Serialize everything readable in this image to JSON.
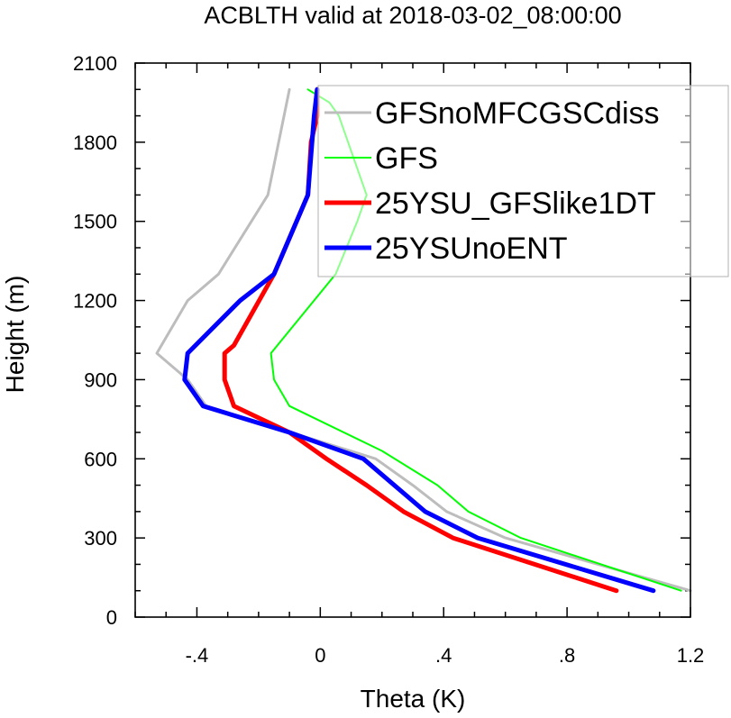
{
  "chart_data": {
    "type": "line",
    "title": "ACBLTH valid at 2018-03-02_08:00:00",
    "xlabel": "Theta (K)",
    "ylabel": "Height (m)",
    "xlim": [
      -0.6,
      1.2
    ],
    "ylim": [
      0,
      2100
    ],
    "xticks": [
      -0.4,
      0,
      0.4,
      0.8,
      1.2
    ],
    "xtick_labels": [
      "-.4",
      "0",
      ".4",
      ".8",
      "1.2"
    ],
    "yticks": [
      0,
      300,
      600,
      900,
      1200,
      1500,
      1800,
      2100
    ],
    "ytick_labels": [
      "0",
      "300",
      "600",
      "900",
      "1200",
      "1500",
      "1800",
      "2100"
    ],
    "grid": false,
    "legend_position": "top-right",
    "series": [
      {
        "name": "GFSnoMFCGSCdiss",
        "color": "#bdbdbd",
        "width": 3,
        "x": [
          1.2,
          0.6,
          0.41,
          0.3,
          0.18,
          -0.37,
          -0.43,
          -0.53,
          -0.43,
          -0.33,
          -0.17,
          -0.1
        ],
        "y": [
          100,
          300,
          400,
          500,
          600,
          800,
          900,
          1000,
          1200,
          1300,
          1600,
          2000
        ]
      },
      {
        "name": "GFS",
        "color": "#00ff00",
        "width": 2,
        "x": [
          1.17,
          0.65,
          0.48,
          0.38,
          0.2,
          -0.1,
          -0.15,
          -0.16,
          0.05,
          0.12,
          0.15,
          0.06,
          0.03,
          -0.04
        ],
        "y": [
          100,
          300,
          400,
          500,
          630,
          800,
          900,
          1000,
          1300,
          1500,
          1600,
          1900,
          1950,
          2000
        ]
      },
      {
        "name": "25YSU_GFSlike1DT",
        "color": "#ff0000",
        "width": 5,
        "x": [
          0.96,
          0.43,
          0.27,
          0.15,
          0.02,
          -0.1,
          -0.28,
          -0.31,
          -0.31,
          -0.28,
          -0.15,
          -0.04,
          -0.03,
          -0.01,
          -0.01
        ],
        "y": [
          100,
          300,
          400,
          500,
          600,
          700,
          800,
          900,
          1000,
          1030,
          1300,
          1600,
          1800,
          1900,
          2000
        ]
      },
      {
        "name": "25YSUnoENT",
        "color": "#0000ff",
        "width": 5,
        "x": [
          1.08,
          0.51,
          0.34,
          0.14,
          -0.1,
          -0.38,
          -0.44,
          -0.43,
          -0.26,
          -0.15,
          -0.04,
          -0.02,
          -0.01
        ],
        "y": [
          100,
          300,
          400,
          600,
          700,
          800,
          900,
          1000,
          1200,
          1300,
          1600,
          1900,
          2000
        ]
      }
    ]
  }
}
